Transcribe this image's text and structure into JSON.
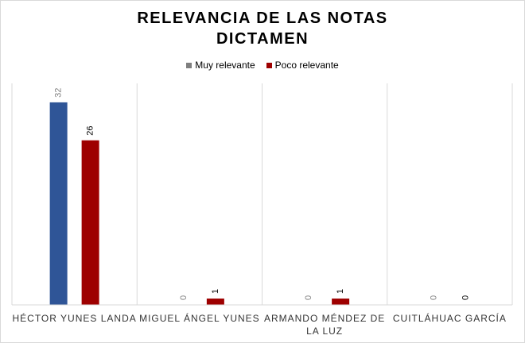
{
  "chart_data": {
    "type": "bar",
    "title_lines": [
      "RELEVANCIA DE LAS NOTAS",
      "DICTAMEN"
    ],
    "categories": [
      [
        "HÉCTOR YUNES LANDA"
      ],
      [
        "MIGUEL ÁNGEL YUNES"
      ],
      [
        "ARMANDO MÉNDEZ DE",
        "LA LUZ"
      ],
      [
        "CUITLÁHUAC GARCÍA"
      ]
    ],
    "series": [
      {
        "name": "Muy relevante",
        "values": [
          32,
          0,
          0,
          0
        ],
        "color": "#2f5597",
        "legend_color": "#7f7f7f",
        "label_color": "#7f7f7f"
      },
      {
        "name": "Poco relevante",
        "values": [
          26,
          1,
          1,
          0
        ],
        "color": "#9e0000",
        "legend_color": "#9e0000",
        "label_color": "#000000"
      }
    ],
    "ylim": [
      0,
      35
    ],
    "grid": "vertical category separators",
    "legend_position": "top"
  }
}
